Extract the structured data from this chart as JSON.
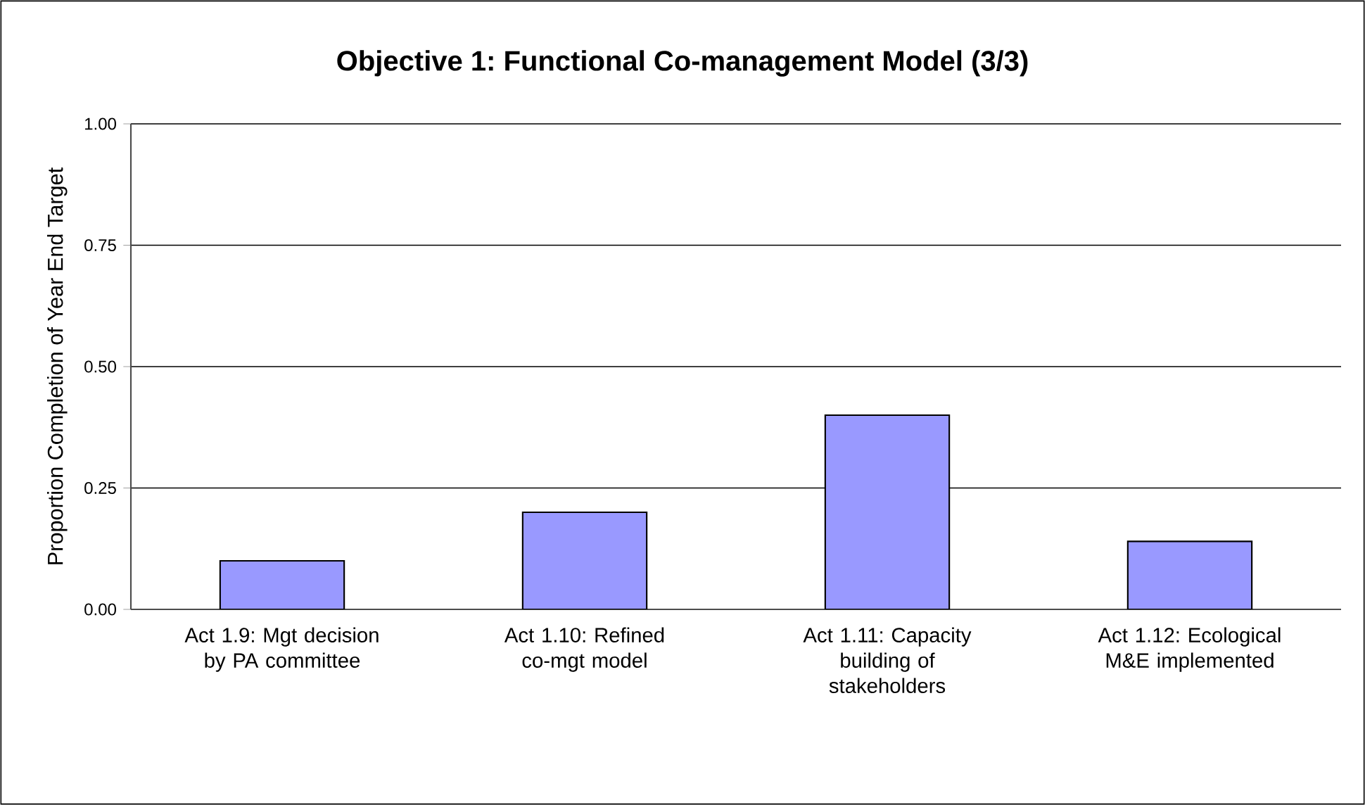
{
  "chart_data": {
    "type": "bar",
    "title": "Objective 1: Functional Co-management Model (3/3)",
    "ylabel": "Proportion Completion of Year End Target",
    "categories": [
      "Act 1.9: Mgt decision by PA committee",
      "Act 1.10: Refined co-mgt model",
      "Act 1.11: Capacity building of stakeholders",
      "Act 1.12: Ecological M&E implemented"
    ],
    "values": [
      0.1,
      0.2,
      0.4,
      0.14
    ],
    "color": "#9999ff",
    "ylim": [
      0,
      1
    ],
    "yticks": [
      {
        "value": 0,
        "label": "0.00"
      },
      {
        "value": 0.25,
        "label": "0.25"
      },
      {
        "value": 0.5,
        "label": "0.50"
      },
      {
        "value": 0.75,
        "label": "0.75"
      },
      {
        "value": 1,
        "label": "1.00"
      }
    ],
    "grid": "y"
  }
}
